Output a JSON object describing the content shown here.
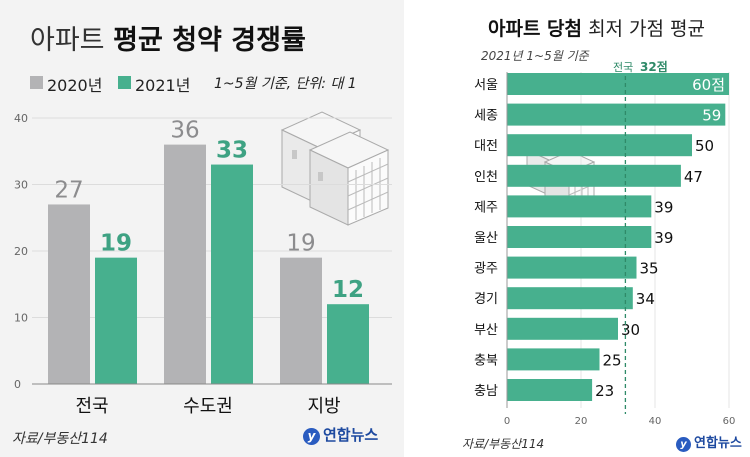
{
  "left": {
    "title_light": "아파트",
    "title_bold": "평균 청약 경쟁률",
    "note": "1~5월 기준, 단위: 대 1",
    "source": "자료/부동산114",
    "logo": "연합뉴스"
  },
  "right": {
    "title_bold": "아파트 당첨",
    "title_light": "최저 가점 평균",
    "subtitle": "2021년 1~5월 기준",
    "source": "자료/부동산114",
    "logo": "연합뉴스"
  },
  "colors": {
    "gray": "#b3b3b5",
    "green": "#47b08e",
    "dark_green": "#2f8a68",
    "panel_bg": "#f3f3f3"
  },
  "chart_data": [
    {
      "type": "bar",
      "categories": [
        "전국",
        "수도권",
        "지방"
      ],
      "series": [
        {
          "name": "2020년",
          "values": [
            27,
            36,
            19
          ],
          "color": "#b3b3b5"
        },
        {
          "name": "2021년",
          "values": [
            19,
            33,
            12
          ],
          "color": "#47b08e"
        }
      ],
      "ylim": [
        0,
        40
      ],
      "yticks": [
        0,
        10,
        20,
        30,
        40
      ],
      "grid": true,
      "legend": "top-left"
    },
    {
      "type": "bar",
      "orientation": "horizontal",
      "categories": [
        "서울",
        "세종",
        "대전",
        "인천",
        "제주",
        "울산",
        "광주",
        "경기",
        "부산",
        "충북",
        "충남"
      ],
      "values": [
        60,
        59,
        50,
        47,
        39,
        39,
        35,
        34,
        30,
        25,
        23
      ],
      "value_labels": [
        "60점",
        "59",
        "50",
        "47",
        "39",
        "39",
        "35",
        "34",
        "30",
        "25",
        "23"
      ],
      "xlim": [
        0,
        60
      ],
      "xticks": [
        0,
        20,
        40,
        60
      ],
      "reference_line": {
        "value": 32,
        "label_prefix": "전국",
        "label_value": "32점"
      },
      "color": "#47b08e"
    }
  ]
}
